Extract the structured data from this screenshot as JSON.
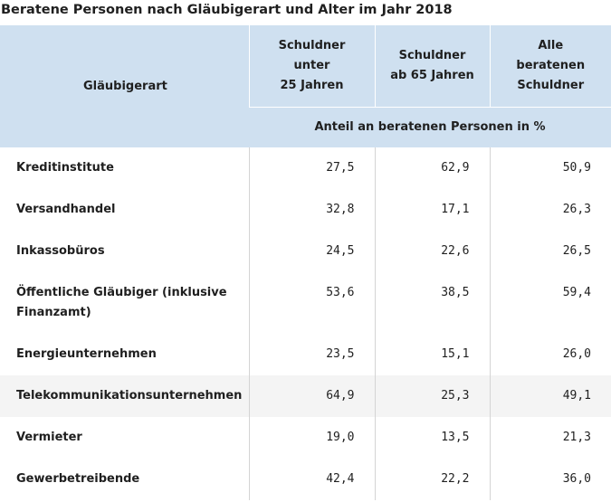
{
  "title": "Beratene Personen nach Gläubigerart und Alter im Jahr 2018",
  "header": {
    "col0": "Gläubigerart",
    "col1_lines": [
      "Schuldner",
      "unter",
      "25 Jahren"
    ],
    "col2_lines": [
      "Schuldner",
      "ab 65 Jahren"
    ],
    "col3_lines": [
      "Alle",
      "beratenen",
      "Schuldner"
    ],
    "unit": "Anteil an beratenen Personen in %"
  },
  "rows": [
    {
      "label": "Kreditinstitute",
      "u25": "27,5",
      "ab65": "62,9",
      "alle": "50,9"
    },
    {
      "label": "Versandhandel",
      "u25": "32,8",
      "ab65": "17,1",
      "alle": "26,3"
    },
    {
      "label": "Inkassobüros",
      "u25": "24,5",
      "ab65": "22,6",
      "alle": "26,5"
    },
    {
      "label": "Öffentliche Gläubiger (inklusive Finanzamt)",
      "u25": "53,6",
      "ab65": "38,5",
      "alle": "59,4"
    },
    {
      "label": "Energieunternehmen",
      "u25": "23,5",
      "ab65": "15,1",
      "alle": "26,0"
    },
    {
      "label": "Telekommunikationsunternehmen",
      "u25": "64,9",
      "ab65": "25,3",
      "alle": "49,1"
    },
    {
      "label": "Vermieter",
      "u25": "19,0",
      "ab65": "13,5",
      "alle": "21,3"
    },
    {
      "label": "Gewerbetreibende",
      "u25": "42,4",
      "ab65": "22,2",
      "alle": "36,0"
    }
  ]
}
